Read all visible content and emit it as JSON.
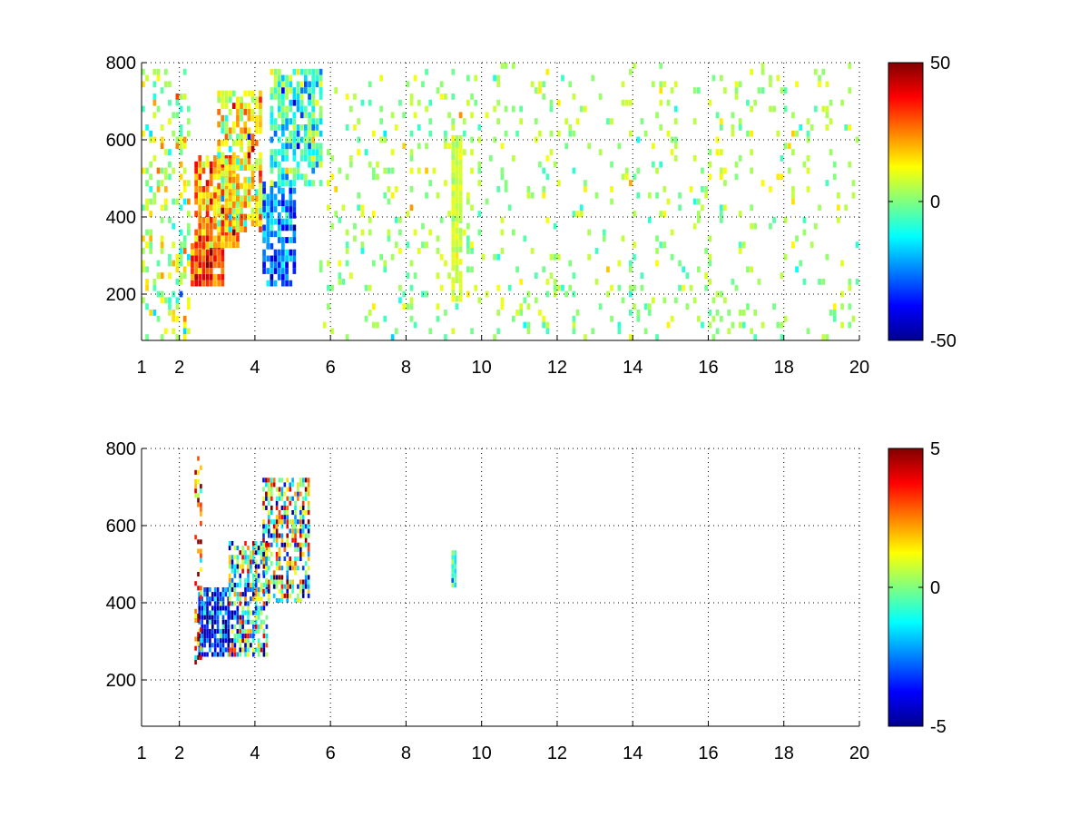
{
  "colors": {
    "background": "#ffffff",
    "axis": "#000000",
    "colormap": [
      "#00008f",
      "#0000ff",
      "#0080ff",
      "#00ffff",
      "#80ff80",
      "#ffff00",
      "#ff8000",
      "#ff0000",
      "#800000"
    ]
  },
  "chart_data": [
    {
      "type": "heatmap",
      "title": "",
      "xlabel": "",
      "ylabel": "",
      "xlim": [
        1,
        20
      ],
      "ylim": [
        80,
        800
      ],
      "xticks": [
        1,
        2,
        4,
        6,
        8,
        10,
        12,
        14,
        16,
        18,
        20
      ],
      "yticks": [
        200,
        400,
        600,
        800
      ],
      "grid": true,
      "grid_style": "dotted",
      "colorbar": {
        "min": -50,
        "max": 50,
        "ticks": [
          50,
          0,
          -50
        ],
        "colormap": "jet",
        "placement": "right"
      },
      "cell_size": {
        "x": 0.1,
        "y": 16
      },
      "regions": [
        {
          "x": [
            1,
            2.3
          ],
          "y": [
            80,
            800
          ],
          "value_mean": 5,
          "value_spread": 10,
          "density": 0.3
        },
        {
          "x": [
            2.3,
            3.2
          ],
          "y": [
            220,
            320
          ],
          "value_mean": 32,
          "value_spread": 8,
          "density": 0.95
        },
        {
          "x": [
            2.4,
            3.6
          ],
          "y": [
            320,
            560
          ],
          "value_mean": 22,
          "value_spread": 10,
          "density": 0.85
        },
        {
          "x": [
            3.0,
            4.2
          ],
          "y": [
            360,
            720
          ],
          "value_mean": 12,
          "value_spread": 12,
          "density": 0.75
        },
        {
          "x": [
            4.2,
            5.0
          ],
          "y": [
            220,
            480
          ],
          "value_mean": -25,
          "value_spread": 10,
          "density": 0.85
        },
        {
          "x": [
            4.4,
            5.7
          ],
          "y": [
            480,
            780
          ],
          "value_mean": -8,
          "value_spread": 12,
          "density": 0.7
        },
        {
          "x": [
            5.7,
            20
          ],
          "y": [
            80,
            800
          ],
          "value_mean": 3,
          "value_spread": 6,
          "density": 0.1
        },
        {
          "x": [
            9.2,
            9.4
          ],
          "y": [
            180,
            600
          ],
          "value_mean": 8,
          "value_spread": 3,
          "density": 0.9
        }
      ]
    },
    {
      "type": "heatmap",
      "title": "",
      "xlabel": "",
      "ylabel": "",
      "xlim": [
        1,
        20
      ],
      "ylim": [
        80,
        800
      ],
      "xticks": [
        1,
        2,
        4,
        6,
        8,
        10,
        12,
        14,
        16,
        18,
        20
      ],
      "yticks": [
        200,
        400,
        600,
        800
      ],
      "grid": true,
      "grid_style": "dotted",
      "colorbar": {
        "min": -5,
        "max": 5,
        "ticks": [
          5,
          0,
          -5
        ],
        "colormap": "jet",
        "placement": "right"
      },
      "cell_size": {
        "x": 0.07,
        "y": 12
      },
      "regions": [
        {
          "x": [
            2.5,
            3.3
          ],
          "y": [
            260,
            440
          ],
          "value_mean": -3.5,
          "value_spread": 1.5,
          "density": 0.8
        },
        {
          "x": [
            3.3,
            4.3
          ],
          "y": [
            260,
            560
          ],
          "value_mean": -1,
          "value_spread": 2.5,
          "density": 0.7
        },
        {
          "x": [
            4.2,
            5.4
          ],
          "y": [
            400,
            720
          ],
          "value_mean": 0.5,
          "value_spread": 3,
          "density": 0.6
        },
        {
          "x": [
            2.4,
            2.6
          ],
          "y": [
            240,
            790
          ],
          "value_mean": 3,
          "value_spread": 2,
          "density": 0.35
        },
        {
          "x": [
            9.2,
            9.3
          ],
          "y": [
            440,
            530
          ],
          "value_mean": -1,
          "value_spread": 1,
          "density": 0.9
        }
      ]
    }
  ]
}
